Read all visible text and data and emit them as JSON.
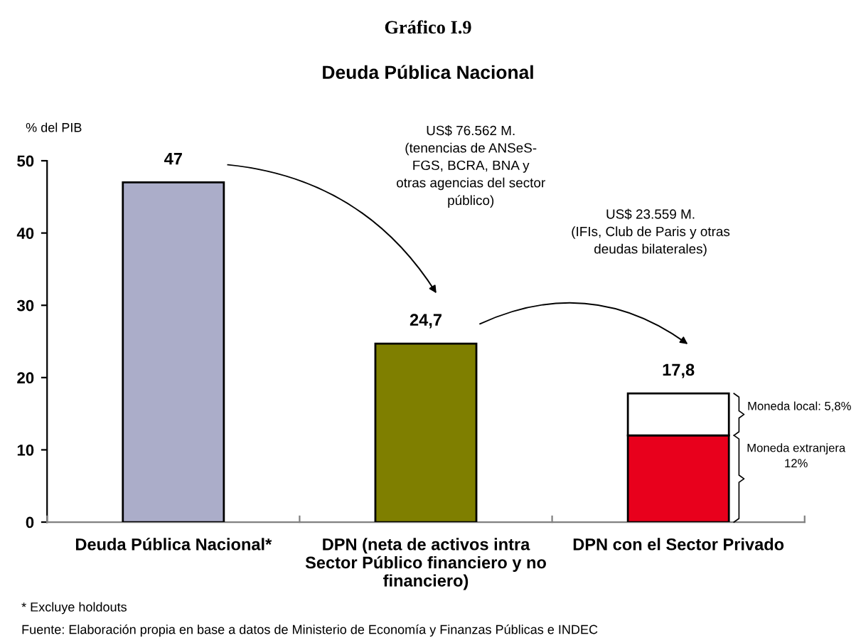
{
  "chart_data": {
    "type": "bar",
    "title": "Gráfico I.9",
    "subtitle": "Deuda Pública Nacional",
    "ylabel": "% del PIB",
    "categories": [
      "Deuda Pública Nacional*",
      "DPN (neta de activos intra\nSector Público financiero y no\nfinanciero)",
      "DPN con el Sector Privado"
    ],
    "stacked": true,
    "series": [
      {
        "colors": [
          "#abadc9",
          "#7f7f00",
          "#e8001c"
        ],
        "values": [
          47,
          24.7,
          12
        ]
      },
      {
        "color": "#ffffff",
        "values": [
          null,
          null,
          5.8
        ]
      }
    ],
    "totals": [
      "47",
      "24,7",
      "17,8"
    ],
    "ylim": [
      0,
      50
    ],
    "yticks": [
      0,
      10,
      20,
      30,
      40,
      50
    ],
    "grid": false,
    "legend": false,
    "annotations": [
      "US$ 76.562 M.\n(tenencias de ANSeS-\nFGS, BCRA, BNA y\notras agencias del sector\npúblico)",
      "US$ 23.559 M.\n(IFIs, Club de Paris y otras\ndeudas bilaterales)",
      "Moneda local: 5,8%",
      "Moneda extranjera\n12%",
      "* Excluye holdouts",
      "Fuente: Elaboración propia en base a datos de Ministerio de Economía y Finanzas Públicas e INDEC"
    ]
  }
}
